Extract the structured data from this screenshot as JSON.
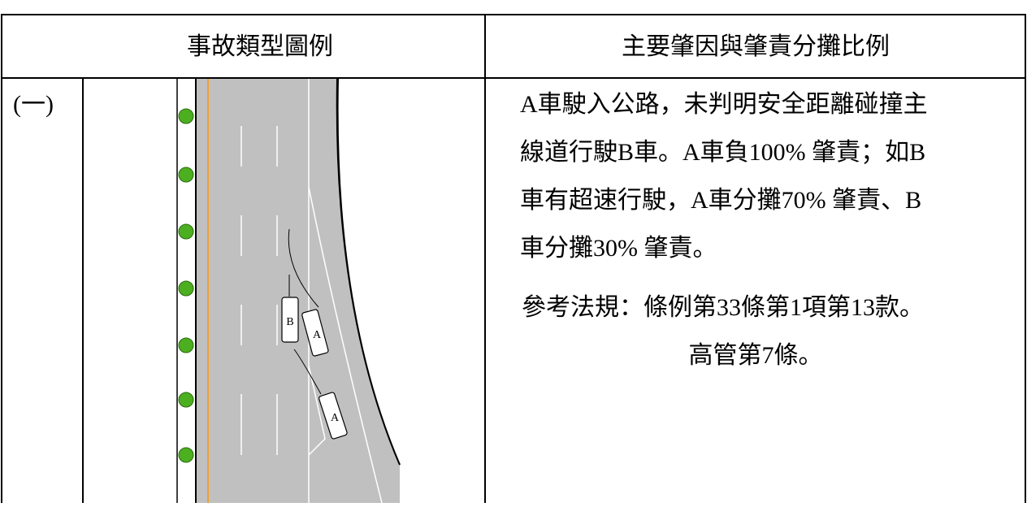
{
  "header": {
    "columns": [
      "事故類型圖例",
      "主要肇因與肇責分攤比例"
    ]
  },
  "rows": [
    {
      "number": "(一)",
      "diagram": {
        "car_labels": [
          "B",
          "A",
          "A"
        ]
      },
      "description": [
        "A車駛入公路，未判明安全距離碰撞主",
        "線道行駛B車。A車負100% 肇責；如B",
        "車有超速行駛，A車分攤70% 肇責、B",
        "車分攤30% 肇責。"
      ],
      "reference": [
        "參考法規：條例第33條第1項第13款。",
        "高管第7條。"
      ]
    }
  ]
}
